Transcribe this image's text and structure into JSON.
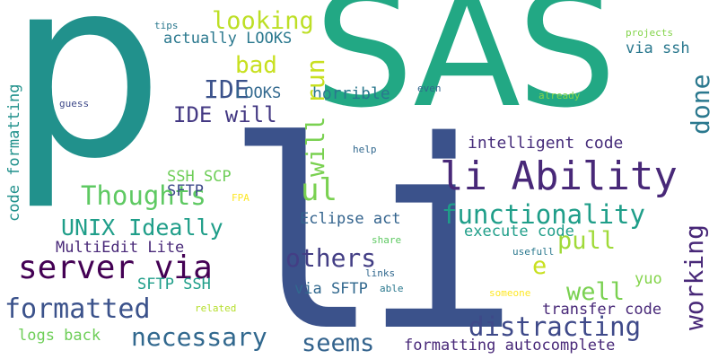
{
  "word_cloud": {
    "words": {
      "p": "p",
      "sas": "SAS",
      "li": "li",
      "looking": "looking",
      "tips": "tips",
      "actually_looks": "actually LOOKS",
      "bad": "bad",
      "ide": "IDE",
      "looks": "LOOKS",
      "horrible": "horrible",
      "ide_will": "IDE will",
      "run": "run",
      "will": "will",
      "via_ssh": "via ssh",
      "projects": "projects",
      "even": "even",
      "already": "already",
      "guess": "guess",
      "done": "done",
      "intelligent_code": "intelligent code",
      "help": "help",
      "li_ability": "li Ability",
      "ul": "ul",
      "thoughts": "Thoughts",
      "ssh_scp": "SSH SCP",
      "sftp": "SFTP",
      "fpa": "FPA",
      "code_formatting": "code formatting",
      "functionality": "functionality",
      "eclipse_act": "Eclipse act",
      "unix_ideally": "UNIX Ideally",
      "execute_code": "execute code",
      "pull": "pull",
      "share": "share",
      "multiedit_lite": "MultiEdit Lite",
      "others": "others",
      "usefull": "usefull",
      "e": "e",
      "server_via": "server via",
      "working": "working",
      "sftp_ssh": "SFTP SSH",
      "links": "links",
      "yuo": "yuo",
      "via_sftp": "via SFTP",
      "able": "able",
      "well": "well",
      "someone": "someone",
      "formatted": "formatted",
      "related": "related",
      "transfer_code": "transfer code",
      "distracting": "distracting",
      "necessary": "necessary",
      "logs_back": "logs back",
      "seems": "seems",
      "formatting_autocomplete": "formatting autocomplete"
    },
    "background_color": "#ffffff",
    "palette": [
      "#440154",
      "#482878",
      "#3e4989",
      "#31688e",
      "#26828e",
      "#1f9e89",
      "#35b779",
      "#6ece58",
      "#b5de2b",
      "#fde725"
    ]
  }
}
